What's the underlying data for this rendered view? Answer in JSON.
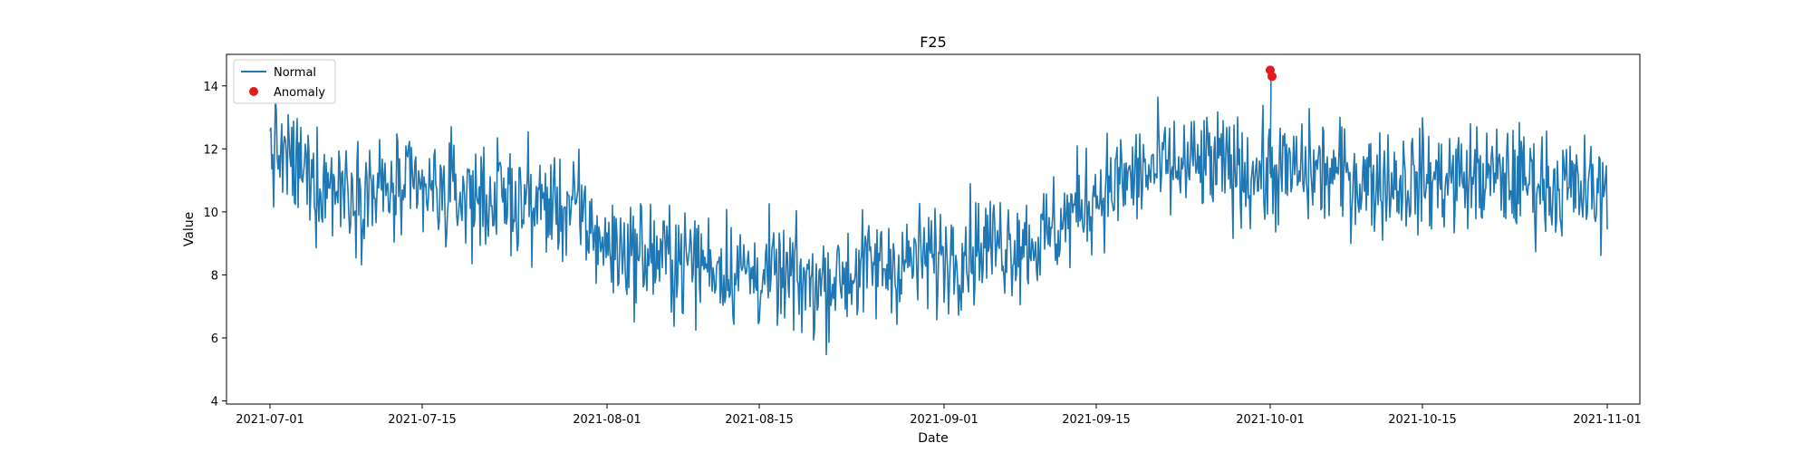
{
  "chart_data": {
    "type": "line",
    "title": "F25",
    "xlabel": "Date",
    "ylabel": "Value",
    "xlim": [
      "2021-06-27",
      "2021-11-04"
    ],
    "ylim": [
      3.9,
      15.0
    ],
    "x_ticks": [
      "2021-07-01",
      "2021-07-15",
      "2021-08-01",
      "2021-08-15",
      "2021-09-01",
      "2021-09-15",
      "2021-10-01",
      "2021-10-15",
      "2021-11-01"
    ],
    "y_ticks": [
      4,
      6,
      8,
      10,
      12,
      14
    ],
    "grid": false,
    "legend": {
      "position": "top-left",
      "entries": [
        "Normal",
        "Anomaly"
      ]
    },
    "colors": {
      "normal": "#1f77b4",
      "anomaly": "#e41a1c"
    },
    "series": [
      {
        "name": "Normal",
        "style": "line",
        "x": [
          "2021-07-01",
          "2021-07-05",
          "2021-07-10",
          "2021-07-15",
          "2021-07-20",
          "2021-07-25",
          "2021-07-29",
          "2021-08-01",
          "2021-08-05",
          "2021-08-10",
          "2021-08-15",
          "2021-08-20",
          "2021-08-25",
          "2021-09-01",
          "2021-09-05",
          "2021-09-10",
          "2021-09-15",
          "2021-09-20",
          "2021-09-25",
          "2021-10-01",
          "2021-10-05",
          "2021-10-10",
          "2021-10-15",
          "2021-10-20",
          "2021-10-25",
          "2021-11-01"
        ],
        "y": [
          12.0,
          11.0,
          10.7,
          10.6,
          10.5,
          10.3,
          10.1,
          8.9,
          8.6,
          8.4,
          8.0,
          7.7,
          8.2,
          8.6,
          9.0,
          9.1,
          10.6,
          11.3,
          11.5,
          11.2,
          11.3,
          11.0,
          11.0,
          11.1,
          11.0,
          10.5
        ],
        "noise": 1.15
      },
      {
        "name": "Anomaly",
        "style": "scatter",
        "x": [
          "2021-10-01",
          "2021-10-01"
        ],
        "y": [
          14.5,
          14.3
        ]
      }
    ]
  }
}
